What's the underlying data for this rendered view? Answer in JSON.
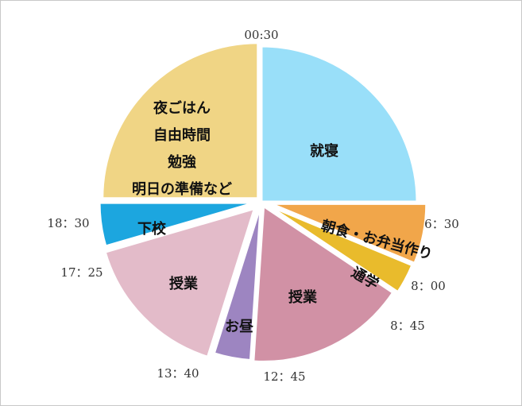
{
  "chart_data": {
    "type": "pie",
    "title": "",
    "start_time": "00:30",
    "slices": [
      {
        "start": "00:30",
        "end": "6:30",
        "label_lines": [
          "就寝"
        ],
        "color": "#99dff9"
      },
      {
        "start": "6:30",
        "end": "8：00",
        "label_lines": [
          "朝食・お弁当作り"
        ],
        "color": "#f1a64a"
      },
      {
        "start": "8：00",
        "end": "8：45",
        "label_lines": [
          "通学"
        ],
        "color": "#e9bb2c"
      },
      {
        "start": "8：45",
        "end": "12：45",
        "label_lines": [
          "授業"
        ],
        "color": "#d191a5"
      },
      {
        "start": "12：45",
        "end": "13：40",
        "label_lines": [
          "お昼"
        ],
        "color": "#9d85c1"
      },
      {
        "start": "13：40",
        "end": "17：25",
        "label_lines": [
          "授業"
        ],
        "color": "#e3bbc9"
      },
      {
        "start": "17：25",
        "end": "18：30",
        "label_lines": [
          "下校"
        ],
        "color": "#1ca6df"
      },
      {
        "start": "18：30",
        "end": "00:30",
        "label_lines": [
          "夜ごはん",
          "自由時間",
          "勉強",
          "明日の準備など"
        ],
        "color": "#f0d585"
      }
    ],
    "durations_minutes": [
      360,
      90,
      45,
      240,
      55,
      225,
      65,
      360
    ],
    "boundary_labels": [
      "00:30",
      "6：30",
      "8：00",
      "8：45",
      "12：45",
      "13：40",
      "17：25",
      "18：30"
    ]
  }
}
